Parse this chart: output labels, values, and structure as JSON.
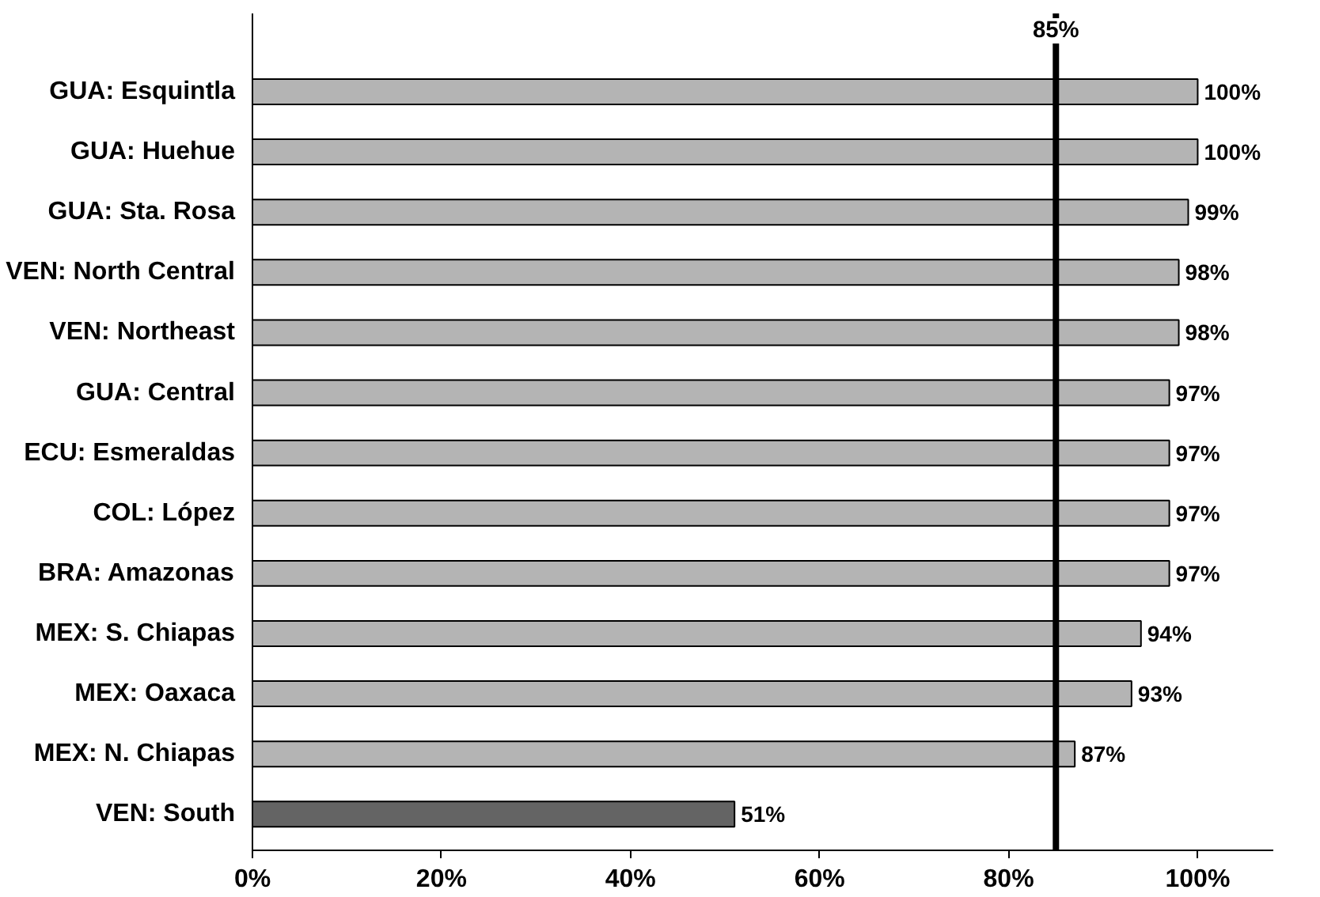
{
  "chart_data": {
    "type": "bar",
    "orientation": "horizontal",
    "categories": [
      "GUA: Esquintla",
      "GUA: Huehue",
      "GUA: Sta. Rosa",
      "VEN: North Central",
      "VEN: Northeast",
      "GUA: Central",
      "ECU: Esmeraldas",
      "COL: López",
      "BRA: Amazonas",
      "MEX: S. Chiapas",
      "MEX: Oaxaca",
      "MEX: N. Chiapas",
      "VEN: South"
    ],
    "values": [
      100,
      100,
      99,
      98,
      98,
      97,
      97,
      97,
      97,
      94,
      93,
      87,
      51
    ],
    "value_labels": [
      "100%",
      "100%",
      "99%",
      "98%",
      "98%",
      "97%",
      "97%",
      "97%",
      "97%",
      "94%",
      "93%",
      "87%",
      "51%"
    ],
    "colors": [
      "#b4b4b4",
      "#b4b4b4",
      "#b4b4b4",
      "#b4b4b4",
      "#b4b4b4",
      "#b4b4b4",
      "#b4b4b4",
      "#b4b4b4",
      "#b4b4b4",
      "#b4b4b4",
      "#b4b4b4",
      "#b4b4b4",
      "#646464"
    ],
    "xlim": [
      0,
      108
    ],
    "xticks": [
      {
        "value": 0,
        "label": "0%"
      },
      {
        "value": 20,
        "label": "20%"
      },
      {
        "value": 40,
        "label": "40%"
      },
      {
        "value": 60,
        "label": "60%"
      },
      {
        "value": 80,
        "label": "80%"
      },
      {
        "value": 100,
        "label": "100%"
      }
    ],
    "ref_lines": [
      {
        "axis": "x",
        "value": 85,
        "label": "85%",
        "color": "#000000"
      }
    ],
    "grid": false
  }
}
